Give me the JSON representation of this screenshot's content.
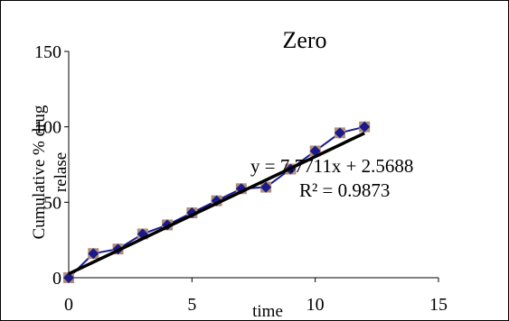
{
  "chart_data": {
    "type": "scatter",
    "title": "Zero",
    "xlabel": "time",
    "ylabel_lines": [
      "Cumulative % drug",
      "relase"
    ],
    "xlim": [
      0,
      15
    ],
    "ylim": [
      0,
      150
    ],
    "x_ticks": [
      0,
      5,
      10,
      15
    ],
    "y_ticks": [
      0,
      50,
      100,
      150
    ],
    "grid": false,
    "legend": "none",
    "series": [
      {
        "x": [
          0,
          1,
          2,
          3,
          4,
          5,
          6,
          7,
          8,
          9,
          10,
          11,
          12
        ],
        "values": [
          0,
          16,
          19,
          29,
          35,
          43,
          51,
          59,
          60,
          72,
          84,
          96,
          100
        ],
        "color": "#1a1a8c",
        "marker_fill": "#1a1a8c",
        "marker_edge": "#b08f7a"
      }
    ],
    "trendline": {
      "slope": 7.7711,
      "intercept": 2.5688,
      "x_range": [
        0,
        12
      ],
      "color": "#000000"
    },
    "annotations": {
      "equation": "y = 7.7711x + 2.5688",
      "r_squared": "R² = 0.9873"
    }
  }
}
